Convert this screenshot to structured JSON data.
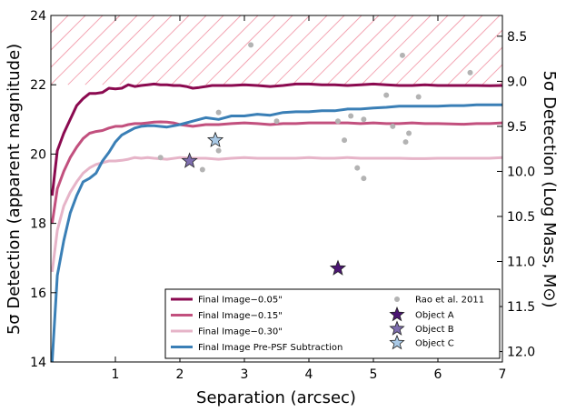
{
  "chart_data": {
    "type": "line",
    "xlabel": "Separation (arcsec)",
    "ylabel": "5σ Detection (apparent magnitude)",
    "y2label": "5σ Detection (Log Mass, M⊙)",
    "xlim": [
      0,
      7
    ],
    "ylim": [
      14,
      24
    ],
    "xticks": [
      "1",
      "2",
      "3",
      "4",
      "5",
      "6",
      "7"
    ],
    "yticks": [
      "14",
      "16",
      "18",
      "20",
      "22",
      "24"
    ],
    "y2ticks": [
      {
        "label": "8.5",
        "mag": 23.4
      },
      {
        "label": "9.0",
        "mag": 22.1
      },
      {
        "label": "9.5",
        "mag": 20.8
      },
      {
        "label": "10.0",
        "mag": 19.5
      },
      {
        "label": "10.5",
        "mag": 18.2
      },
      {
        "label": "11.0",
        "mag": 16.9
      },
      {
        "label": "11.5",
        "mag": 15.6
      },
      {
        "label": "12.0",
        "mag": 14.3
      }
    ],
    "hatched_region": {
      "x0": 0,
      "x1": 7,
      "y_bottom": 22.0,
      "y_top": 24,
      "color": "#f4a6b4"
    },
    "series": [
      {
        "name": "Final Image−0.05\"",
        "color": "#8b0a50",
        "x": [
          0.02,
          0.1,
          0.2,
          0.3,
          0.4,
          0.5,
          0.6,
          0.7,
          0.8,
          0.9,
          1.0,
          1.1,
          1.2,
          1.3,
          1.4,
          1.5,
          1.6,
          1.7,
          1.8,
          1.9,
          2.0,
          2.1,
          2.2,
          2.3,
          2.4,
          2.5,
          2.6,
          2.8,
          3.0,
          3.2,
          3.4,
          3.6,
          3.8,
          4.0,
          4.2,
          4.4,
          4.6,
          4.8,
          5.0,
          5.2,
          5.4,
          5.6,
          5.8,
          6.0,
          6.2,
          6.4,
          6.6,
          6.8,
          7.0
        ],
        "y": [
          18.8,
          20.1,
          20.6,
          21.0,
          21.4,
          21.6,
          21.75,
          21.75,
          21.78,
          21.9,
          21.88,
          21.9,
          22.0,
          21.95,
          21.98,
          22.0,
          22.02,
          22.0,
          22.0,
          21.98,
          21.98,
          21.95,
          21.9,
          21.92,
          21.95,
          21.98,
          21.98,
          21.98,
          22.0,
          21.98,
          21.95,
          21.98,
          22.02,
          22.02,
          22.0,
          22.0,
          21.98,
          22.0,
          22.02,
          22.0,
          21.98,
          21.98,
          22.0,
          21.98,
          21.98,
          21.98,
          21.98,
          21.97,
          21.98
        ]
      },
      {
        "name": "Final Image−0.15\"",
        "color": "#c2507e",
        "x": [
          0.02,
          0.1,
          0.2,
          0.3,
          0.4,
          0.5,
          0.6,
          0.7,
          0.8,
          0.9,
          1.0,
          1.1,
          1.2,
          1.3,
          1.4,
          1.5,
          1.6,
          1.7,
          1.8,
          1.9,
          2.0,
          2.2,
          2.4,
          2.6,
          2.8,
          3.0,
          3.2,
          3.4,
          3.6,
          3.8,
          4.0,
          4.2,
          4.4,
          4.6,
          4.8,
          5.0,
          5.2,
          5.4,
          5.6,
          5.8,
          6.0,
          6.2,
          6.4,
          6.6,
          6.8,
          7.0
        ],
        "y": [
          18.0,
          19.0,
          19.5,
          19.9,
          20.2,
          20.45,
          20.6,
          20.65,
          20.68,
          20.75,
          20.8,
          20.8,
          20.85,
          20.88,
          20.88,
          20.9,
          20.92,
          20.93,
          20.92,
          20.9,
          20.85,
          20.8,
          20.85,
          20.85,
          20.88,
          20.9,
          20.88,
          20.85,
          20.88,
          20.88,
          20.9,
          20.9,
          20.9,
          20.9,
          20.88,
          20.9,
          20.88,
          20.88,
          20.9,
          20.88,
          20.88,
          20.87,
          20.86,
          20.88,
          20.88,
          20.9
        ]
      },
      {
        "name": "Final Image−0.30\"",
        "color": "#e6b4c8",
        "x": [
          0.02,
          0.1,
          0.2,
          0.3,
          0.4,
          0.5,
          0.6,
          0.7,
          0.8,
          0.9,
          1.0,
          1.1,
          1.2,
          1.3,
          1.4,
          1.5,
          1.6,
          1.8,
          2.0,
          2.2,
          2.4,
          2.6,
          2.8,
          3.0,
          3.2,
          3.4,
          3.6,
          3.8,
          4.0,
          4.2,
          4.4,
          4.6,
          4.8,
          5.0,
          5.2,
          5.4,
          5.6,
          5.8,
          6.0,
          6.2,
          6.4,
          6.6,
          6.8,
          7.0
        ],
        "y": [
          16.6,
          17.8,
          18.5,
          18.9,
          19.2,
          19.45,
          19.6,
          19.7,
          19.75,
          19.8,
          19.8,
          19.82,
          19.85,
          19.9,
          19.88,
          19.9,
          19.88,
          19.85,
          19.9,
          19.88,
          19.88,
          19.85,
          19.88,
          19.9,
          19.88,
          19.88,
          19.88,
          19.88,
          19.9,
          19.88,
          19.88,
          19.9,
          19.88,
          19.88,
          19.88,
          19.88,
          19.87,
          19.87,
          19.88,
          19.88,
          19.88,
          19.88,
          19.88,
          19.9
        ]
      },
      {
        "name": "Final Image Pre-PSF Subtraction",
        "color": "#3a7fb6",
        "x": [
          0.02,
          0.1,
          0.2,
          0.3,
          0.4,
          0.5,
          0.6,
          0.7,
          0.8,
          0.9,
          1.0,
          1.1,
          1.2,
          1.3,
          1.4,
          1.5,
          1.6,
          1.8,
          2.0,
          2.2,
          2.4,
          2.6,
          2.8,
          3.0,
          3.2,
          3.4,
          3.6,
          3.8,
          4.0,
          4.2,
          4.4,
          4.6,
          4.8,
          5.0,
          5.2,
          5.4,
          5.6,
          5.8,
          6.0,
          6.2,
          6.4,
          6.6,
          6.8,
          7.0
        ],
        "y": [
          14.0,
          16.5,
          17.5,
          18.3,
          18.8,
          19.2,
          19.3,
          19.45,
          19.8,
          20.05,
          20.35,
          20.55,
          20.65,
          20.75,
          20.8,
          20.82,
          20.82,
          20.78,
          20.85,
          20.95,
          21.05,
          21.0,
          21.1,
          21.1,
          21.15,
          21.12,
          21.2,
          21.22,
          21.22,
          21.25,
          21.25,
          21.3,
          21.3,
          21.33,
          21.35,
          21.38,
          21.38,
          21.38,
          21.38,
          21.4,
          21.4,
          21.42,
          21.42,
          21.42
        ]
      }
    ],
    "scatter": {
      "name": "Rao et al. 2011",
      "color": "#b3b3b3",
      "points": [
        [
          1.7,
          19.9
        ],
        [
          2.35,
          19.55
        ],
        [
          2.6,
          20.1
        ],
        [
          2.6,
          21.2
        ],
        [
          3.1,
          23.15
        ],
        [
          3.5,
          20.95
        ],
        [
          4.45,
          20.95
        ],
        [
          4.55,
          20.4
        ],
        [
          4.65,
          21.1
        ],
        [
          4.75,
          19.6
        ],
        [
          4.85,
          19.3
        ],
        [
          4.85,
          21.0
        ],
        [
          5.2,
          21.7
        ],
        [
          5.3,
          20.8
        ],
        [
          5.45,
          22.85
        ],
        [
          5.5,
          20.35
        ],
        [
          5.55,
          20.6
        ],
        [
          5.7,
          21.65
        ],
        [
          6.5,
          22.35
        ]
      ]
    },
    "objects": [
      {
        "name": "Object A",
        "x": 4.45,
        "y": 16.7,
        "color": "#4b1573"
      },
      {
        "name": "Object B",
        "x": 2.15,
        "y": 19.8,
        "color": "#7d6dae"
      },
      {
        "name": "Object C",
        "x": 2.55,
        "y": 20.4,
        "color": "#a9c9e6"
      }
    ],
    "legend_position": "bottom-right",
    "grid": false
  }
}
